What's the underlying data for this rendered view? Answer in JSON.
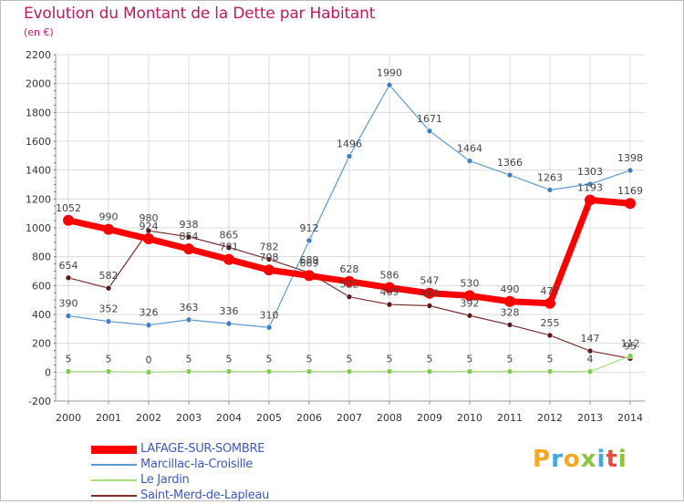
{
  "title": "Evolution du Montant de la Dette par Habitant",
  "unit": "(en €)",
  "logo": {
    "letters": [
      "P",
      "r",
      "o",
      "x",
      "i",
      "t",
      "i"
    ],
    "colors": [
      "#f7a823",
      "#43a6de",
      "#f7a823",
      "#8bc53f",
      "#43a6de",
      "#e94e3d",
      "#8bc53f"
    ]
  },
  "chart_data": {
    "type": "line",
    "title": "Evolution du Montant de la Dette par Habitant",
    "ylabel": "(en €)",
    "xlabel": "",
    "x": [
      "2000",
      "2001",
      "2002",
      "2003",
      "2004",
      "2005",
      "2006",
      "2007",
      "2008",
      "2009",
      "2010",
      "2011",
      "2012",
      "2013",
      "2014"
    ],
    "ylim": [
      -200,
      2200
    ],
    "yticks": [
      -200,
      0,
      200,
      400,
      600,
      800,
      1000,
      1200,
      1400,
      1600,
      1800,
      2000,
      2200
    ],
    "grid": true,
    "legend_position": "bottom-left",
    "series": [
      {
        "name": "LAFAGE-SUR-SOMBRE",
        "color": "#ff0000",
        "values": [
          1052,
          990,
          924,
          854,
          781,
          708,
          669,
          628,
          586,
          547,
          530,
          490,
          477,
          1193,
          1169
        ]
      },
      {
        "name": "Marcillac-la-Croisille",
        "color": "#5b9bd5",
        "values": [
          390,
          352,
          326,
          363,
          336,
          310,
          912,
          1496,
          1990,
          1671,
          1464,
          1366,
          1263,
          1303,
          1398
        ]
      },
      {
        "name": "Le Jardin",
        "color": "#a6e07c",
        "values": [
          5,
          5,
          0,
          5,
          5,
          5,
          5,
          5,
          5,
          5,
          5,
          5,
          5,
          4,
          112
        ]
      },
      {
        "name": "Saint-Merd-de-Lapleau",
        "color": "#7b2c2c",
        "values": [
          654,
          582,
          980,
          938,
          865,
          782,
          689,
          522,
          469,
          460,
          392,
          328,
          255,
          147,
          95
        ]
      }
    ]
  }
}
